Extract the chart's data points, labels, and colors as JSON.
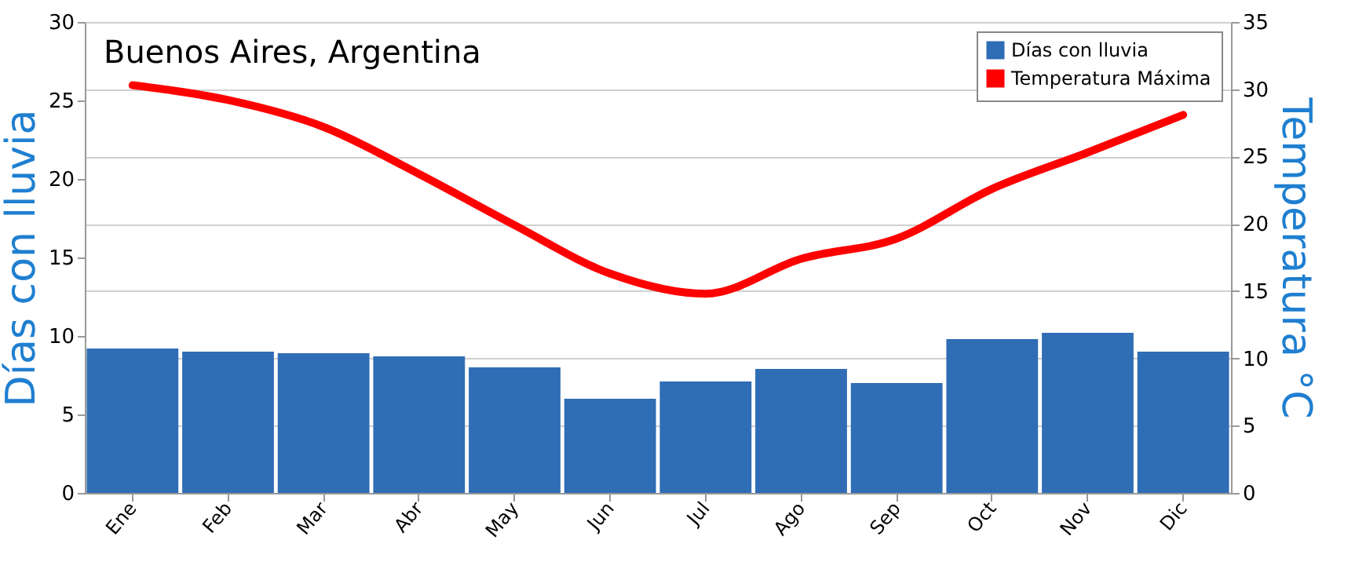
{
  "chart_data": {
    "type": "bar",
    "title": "Buenos Aires, Argentina",
    "ylabel": "Días con lluvia",
    "y2label": "Temperatura °C",
    "categories": [
      "Ene",
      "Feb",
      "Mar",
      "Abr",
      "May",
      "Jun",
      "Jul",
      "Ago",
      "Sep",
      "Oct",
      "Nov",
      "Dic"
    ],
    "series": [
      {
        "name": "Días con lluvia",
        "color": "#2f6db5",
        "values": [
          9.2,
          9.0,
          8.9,
          8.7,
          8.0,
          6.0,
          7.1,
          7.9,
          7.0,
          9.8,
          10.2,
          9.0
        ]
      },
      {
        "name": "Temperatura Máxima",
        "type": "line",
        "axis": "y2",
        "color": "#ff0000",
        "values": [
          30.3,
          29.2,
          27.2,
          23.7,
          19.9,
          16.3,
          14.8,
          17.4,
          18.9,
          22.6,
          25.3,
          28.1
        ]
      }
    ],
    "ylim": [
      0,
      30
    ],
    "yticks": [
      0,
      5,
      10,
      15,
      20,
      25,
      30
    ],
    "y2lim": [
      0,
      35
    ],
    "y2ticks": [
      0,
      5,
      10,
      15,
      20,
      25,
      30,
      35
    ],
    "grid": "y2",
    "legend": "top right"
  }
}
